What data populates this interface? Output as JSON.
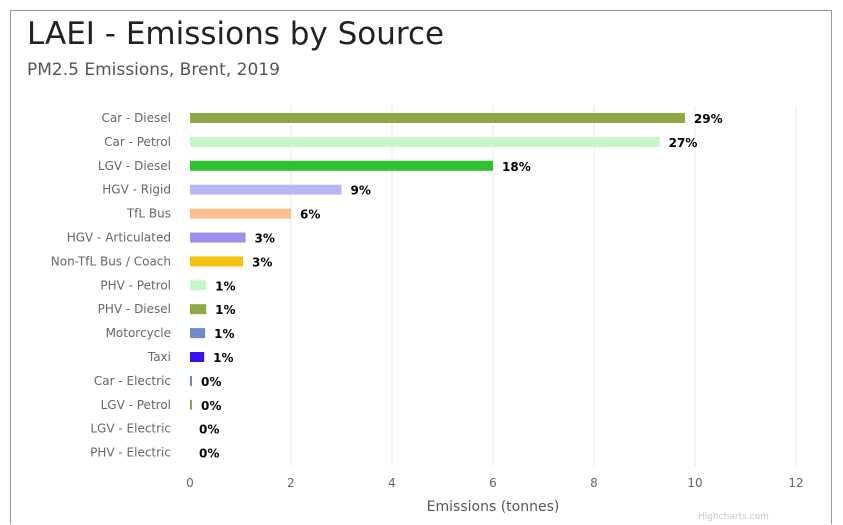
{
  "header": {
    "title": "LAEI - Emissions by Source",
    "subtitle": "PM2.5 Emissions, Brent, 2019",
    "credit": "Highcharts.com"
  },
  "chart_data": {
    "type": "bar",
    "orientation": "horizontal",
    "title": "LAEI - Emissions by Source",
    "subtitle": "PM2.5 Emissions, Brent, 2019",
    "xlabel": "Emissions (tonnes)",
    "xlim": [
      0,
      12
    ],
    "xticks": [
      0,
      2,
      4,
      6,
      8,
      10,
      12
    ],
    "grid": true,
    "categories": [
      "Car - Diesel",
      "Car - Petrol",
      "LGV - Diesel",
      "HGV - Rigid",
      "TfL Bus",
      "HGV - Articulated",
      "Non-TfL Bus / Coach",
      "PHV - Petrol",
      "PHV - Diesel",
      "Motorcycle",
      "Taxi",
      "Car - Electric",
      "LGV - Petrol",
      "LGV - Electric",
      "PHV - Electric"
    ],
    "values": [
      9.8,
      9.3,
      6.0,
      3.0,
      2.0,
      1.1,
      1.05,
      0.32,
      0.32,
      0.3,
      0.28,
      0.04,
      0.04,
      0.0,
      0.0
    ],
    "data_labels": [
      "29%",
      "27%",
      "18%",
      "9%",
      "6%",
      "3%",
      "3%",
      "1%",
      "1%",
      "1%",
      "1%",
      "0%",
      "0%",
      "0%",
      "0%"
    ],
    "colors": [
      "#8fa845",
      "#c6f7c6",
      "#2ec22e",
      "#b8b8f4",
      "#fbbf8e",
      "#9b91eb",
      "#f4c20d",
      "#c6f7c6",
      "#8fa845",
      "#6e88cc",
      "#3b0ff5",
      "#6e88cc",
      "#8fa845",
      "#c6f7c6",
      "#c6f7c6"
    ]
  }
}
